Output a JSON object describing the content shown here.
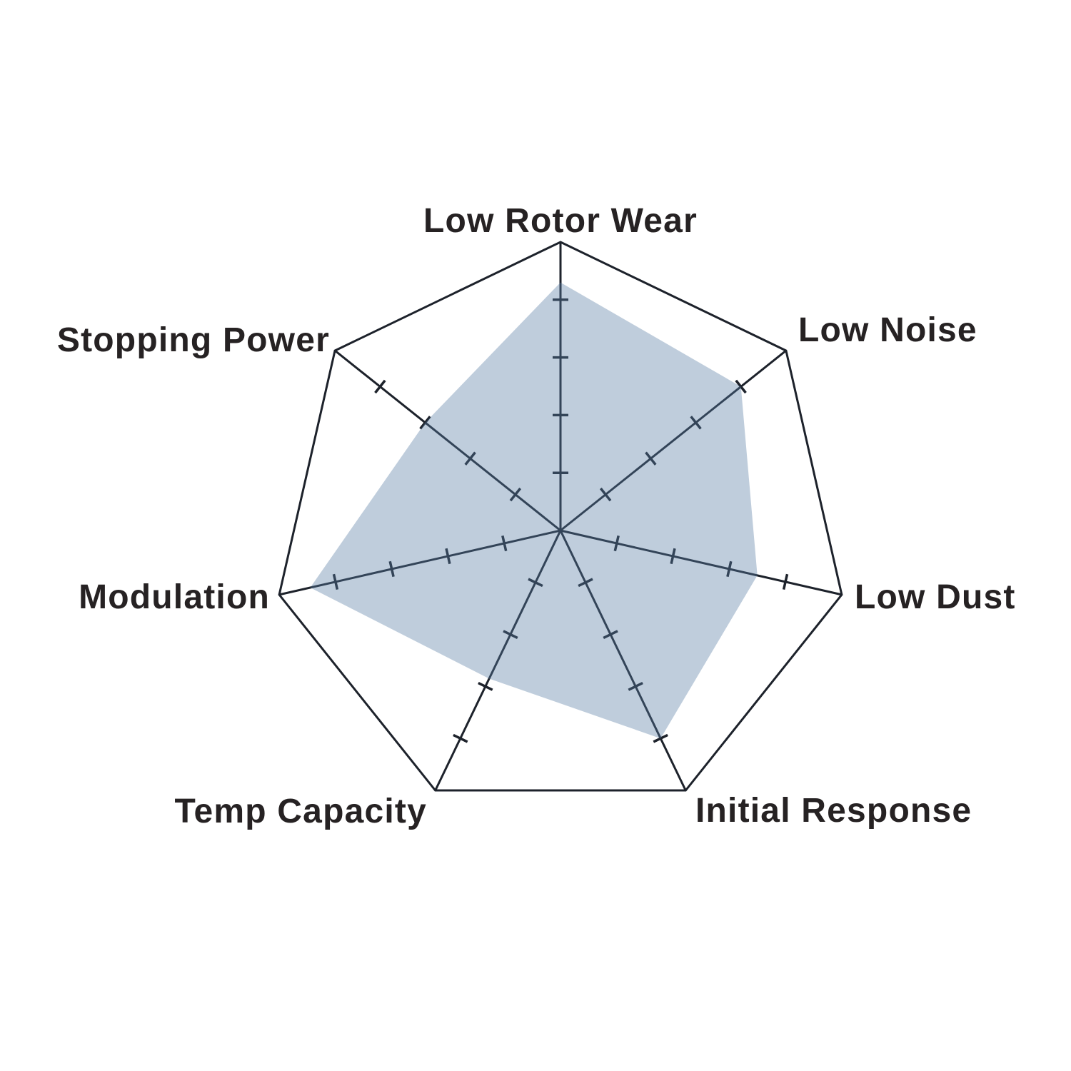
{
  "chart_data": {
    "type": "radar",
    "title": "",
    "categories": [
      "Low Rotor Wear",
      "Low Noise",
      "Low Dust",
      "Initial Response",
      "Temp Capacity",
      "Modulation",
      "Stopping Power"
    ],
    "series": [
      {
        "values": [
          4.3,
          4.0,
          3.5,
          4.0,
          2.85,
          4.45,
          3.0
        ]
      }
    ],
    "scale": {
      "min": 0,
      "max": 5,
      "tick_values": [
        1,
        2,
        3,
        4
      ],
      "tick_labels_visible": false
    },
    "layout": {
      "shape": "heptagon",
      "start_angle_deg": -90,
      "direction": "clockwise",
      "gridlines": "none",
      "legend": "none"
    },
    "colors": {
      "series_fill": "rgba(88,123,164,0.38)",
      "axis_stroke": "#1d222b",
      "label_color": "#262223",
      "background": "#ffffff"
    }
  }
}
